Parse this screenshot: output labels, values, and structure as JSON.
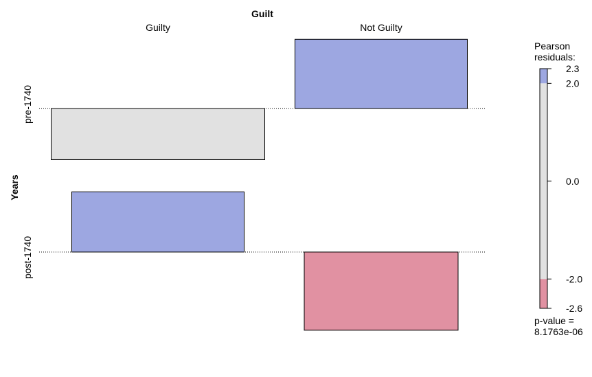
{
  "chart_data": {
    "type": "association",
    "title": "Guilt",
    "column_variable": "Guilt",
    "row_variable": "Years",
    "columns": [
      "Guilty",
      "Not Guilty"
    ],
    "rows": [
      "pre-1740",
      "post-1740"
    ],
    "cells": [
      {
        "row": "pre-1740",
        "column": "Guilty",
        "residual": -1.7
      },
      {
        "row": "pre-1740",
        "column": "Not Guilty",
        "residual": 2.3
      },
      {
        "row": "post-1740",
        "column": "Guilty",
        "residual": 2.0
      },
      {
        "row": "post-1740",
        "column": "Not Guilty",
        "residual": -2.6
      }
    ],
    "legend": {
      "title_line1": "Pearson",
      "title_line2": "residuals:",
      "ticks": [
        "2.3",
        "2.0",
        "0.0",
        "-2.0",
        "-2.6"
      ],
      "tick_values": [
        2.3,
        2.0,
        0.0,
        -2.0,
        -2.6
      ],
      "range": [
        -2.6,
        2.3
      ],
      "pvalue_line1": "p-value =",
      "pvalue_line2": "8.1763e-06",
      "thresholds": [
        -2.0,
        2.0
      ]
    },
    "colors": {
      "positive": "#9da7e1",
      "negative": "#e191a2",
      "neutral": "#e1e1e1",
      "border": "#000000"
    }
  }
}
